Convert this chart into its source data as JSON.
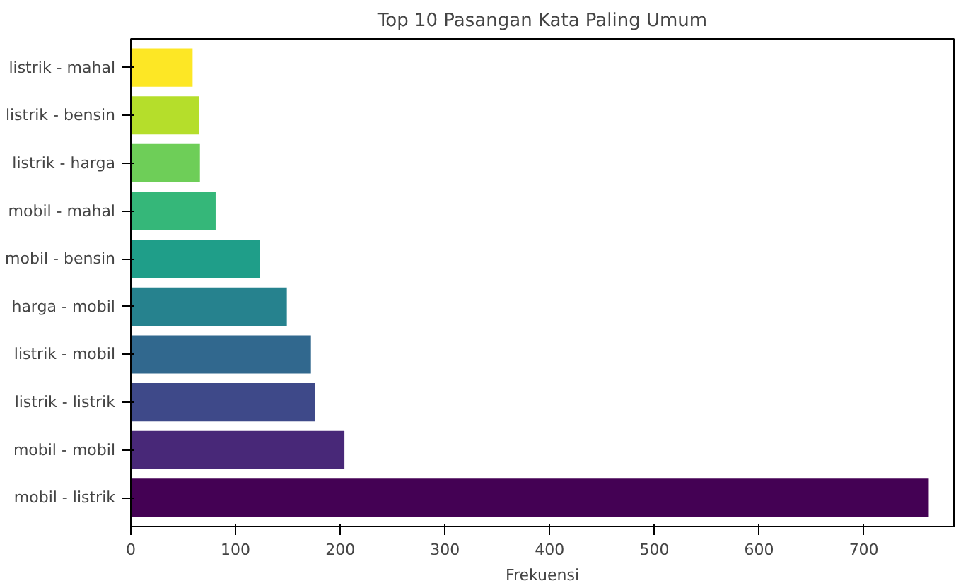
{
  "chart_data": {
    "type": "bar",
    "orientation": "horizontal",
    "title": "Top 10 Pasangan Kata Paling Umum",
    "xlabel": "Frekuensi",
    "categories": [
      "listrik - mahal",
      "listrik - bensin",
      "listrik - harga",
      "mobil - mahal",
      "mobil - bensin",
      "harga - mobil",
      "listrik - mobil",
      "listrik - listrik",
      "mobil - mobil",
      "mobil - listrik"
    ],
    "values": [
      59,
      65,
      66,
      81,
      123,
      149,
      172,
      176,
      204,
      762
    ],
    "colors": [
      "#fde725",
      "#b5de2b",
      "#6ece58",
      "#35b779",
      "#1f9e89",
      "#26828e",
      "#31688e",
      "#3e4989",
      "#482878",
      "#440154"
    ],
    "xlim": [
      0,
      786
    ],
    "xticks": [
      0,
      100,
      200,
      300,
      400,
      500,
      600,
      700
    ],
    "grid": false
  }
}
